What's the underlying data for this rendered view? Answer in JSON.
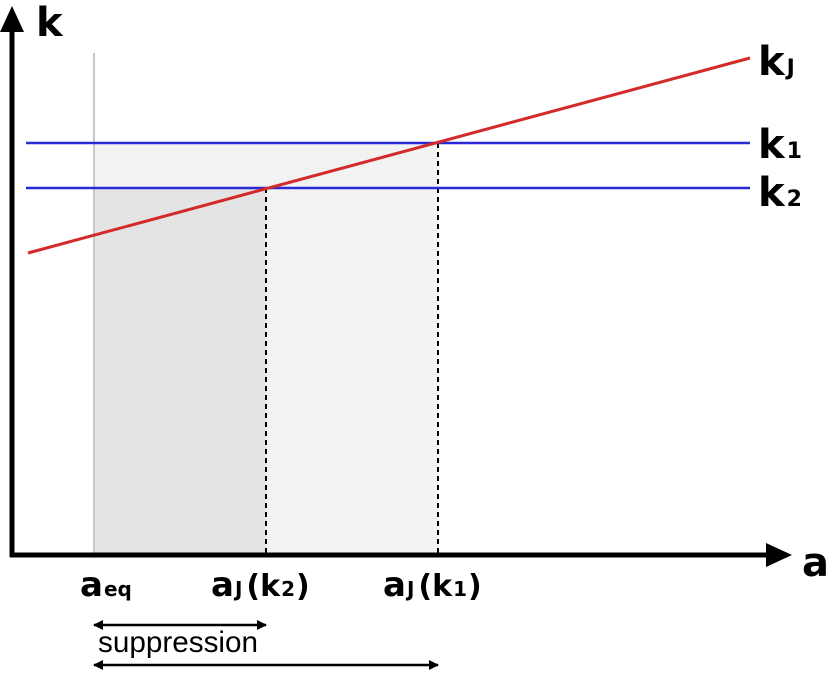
{
  "axes": {
    "y_label": "k",
    "x_label": "a"
  },
  "lines": {
    "kj": {
      "main": "k",
      "sub": "J",
      "color": "#d42a2a"
    },
    "k1": {
      "main": "k",
      "sub": "1",
      "color": "#2a2ad4"
    },
    "k2": {
      "main": "k",
      "sub": "2",
      "color": "#2a2ad4"
    }
  },
  "ticks": {
    "a_eq": {
      "main": "a",
      "sub": "eq"
    },
    "aj_k2": {
      "main": "a",
      "sub": "J",
      "open": "(k",
      "arg": "2",
      "close": ")"
    },
    "aj_k1": {
      "main": "a",
      "sub": "J",
      "open": "(k",
      "arg": "1",
      "close": ")"
    }
  },
  "annotations": {
    "suppression": "suppression"
  },
  "colors": {
    "region_light": "#f2f2f2",
    "region_dark": "#e4e4e4",
    "aeq_line": "#c8c8c8"
  }
}
